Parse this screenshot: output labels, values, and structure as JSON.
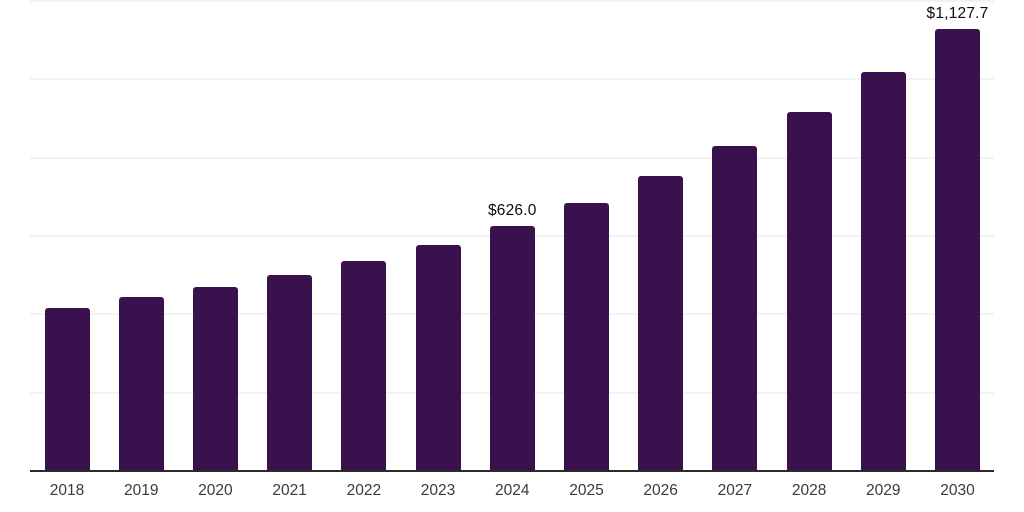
{
  "chart_data": {
    "type": "bar",
    "title": "",
    "xlabel": "",
    "ylabel": "",
    "categories": [
      "2018",
      "2019",
      "2020",
      "2021",
      "2022",
      "2023",
      "2024",
      "2025",
      "2026",
      "2027",
      "2028",
      "2029",
      "2030"
    ],
    "values": [
      417,
      444,
      469,
      500,
      536,
      577,
      626.0,
      684,
      754,
      830,
      916,
      1018,
      1127.7
    ],
    "data_labels": {
      "2024": "$626.0",
      "2030": "$1,127.7"
    },
    "ylim": [
      0,
      1200
    ],
    "gridline_values": [
      200,
      400,
      600,
      800,
      1000,
      1200
    ],
    "grid": "horizontal-only",
    "legend": "none",
    "bar_color": "#39124d",
    "gridline_color": "#f2f2f2",
    "axis_line_color": "#2a2a2a",
    "axis_label_color": "#3a3a3a",
    "data_label_color": "#0d0d0d"
  }
}
